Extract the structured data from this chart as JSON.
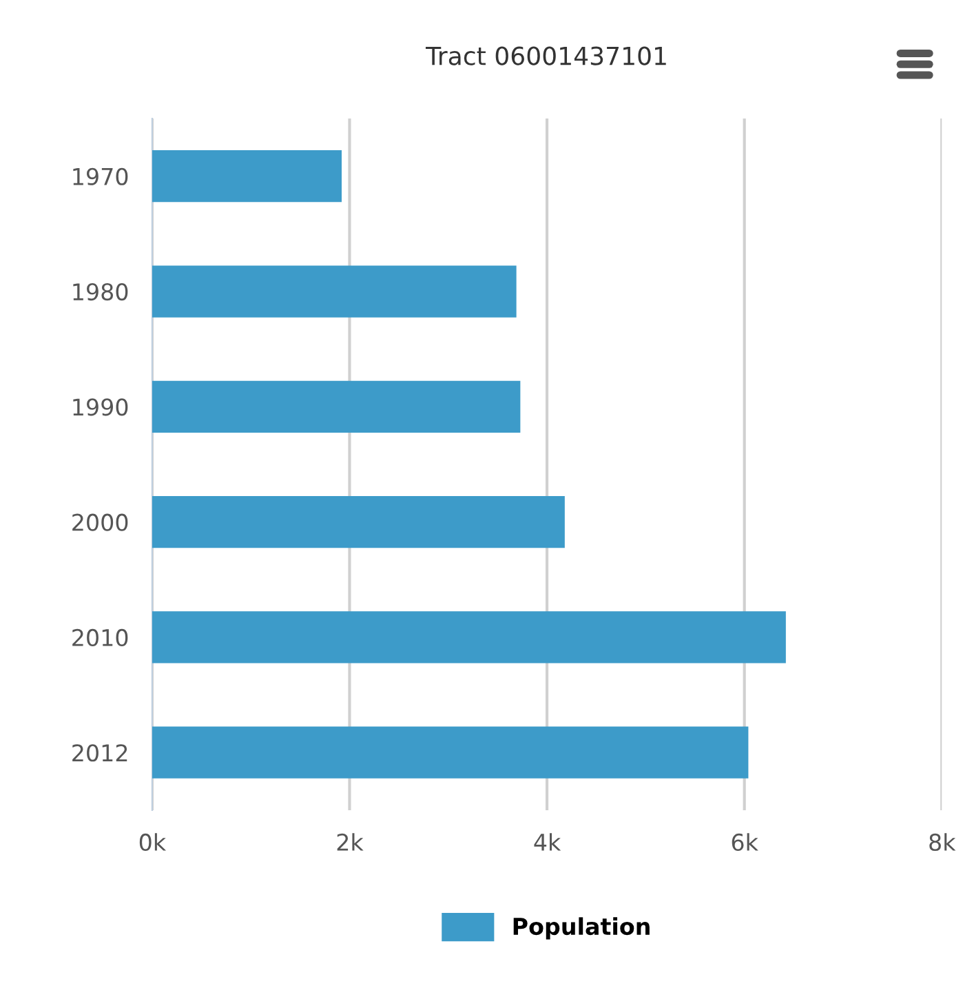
{
  "chart_data": {
    "type": "bar",
    "orientation": "horizontal",
    "title": "Tract 06001437101",
    "categories": [
      "1970",
      "1980",
      "1990",
      "2000",
      "2010",
      "2012"
    ],
    "series": [
      {
        "name": "Population",
        "color": "#3d9bc9",
        "values": [
          1920,
          3690,
          3730,
          4180,
          6420,
          6040
        ]
      }
    ],
    "xlim": [
      0,
      8000
    ],
    "xticks": [
      {
        "value": 0,
        "label": "0k"
      },
      {
        "value": 2000,
        "label": "2k"
      },
      {
        "value": 4000,
        "label": "4k"
      },
      {
        "value": 6000,
        "label": "6k"
      },
      {
        "value": 8000,
        "label": "8k"
      }
    ],
    "grid": "x",
    "legend": "bottom"
  }
}
